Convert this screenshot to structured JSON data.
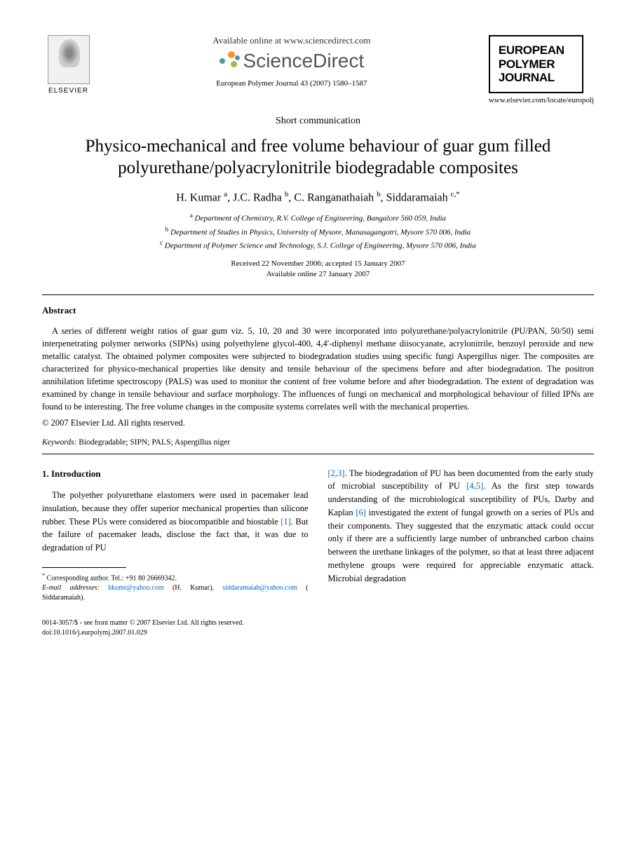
{
  "header": {
    "available_online": "Available online at www.sciencedirect.com",
    "sciencedirect": "ScienceDirect",
    "elsevier": "ELSEVIER",
    "journal_ref": "European Polymer Journal 43 (2007) 1580–1587",
    "journal_name_l1": "EUROPEAN",
    "journal_name_l2": "POLYMER",
    "journal_name_l3": "JOURNAL",
    "journal_url": "www.elsevier.com/locate/europolj"
  },
  "article": {
    "type": "Short communication",
    "title": "Physico-mechanical and free volume behaviour of guar gum filled polyurethane/polyacrylonitrile biodegradable composites",
    "authors_html": "H. Kumar <sup>a</sup>, J.C. Radha <sup>b</sup>, C. Ranganathaiah <sup>b</sup>, Siddaramaiah <sup>c,*</sup>",
    "aff_a": "Department of Chemistry, R.V. College of Engineering, Bangalore 560 059, India",
    "aff_b": "Department of Studies in Physics, University of Mysore, Manasagangotri, Mysore 570 006, India",
    "aff_c": "Department of Polymer Science and Technology, S.J. College of Engineering, Mysore 570 006, India",
    "dates_l1": "Received 22 November 2006; accepted 15 January 2007",
    "dates_l2": "Available online 27 January 2007"
  },
  "abstract": {
    "heading": "Abstract",
    "body": "A series of different weight ratios of guar gum viz. 5, 10, 20 and 30 were incorporated into polyurethane/polyacrylonitrile (PU/PAN, 50/50) semi interpenetrating polymer networks (SIPNs) using polyethylene glycol-400, 4,4′-diphenyl methane diisocyanate, acrylonitrile, benzoyl peroxide and new metallic catalyst. The obtained polymer composites were subjected to biodegradation studies using specific fungi Aspergillus niger. The composites are characterized for physico-mechanical properties like density and tensile behaviour of the specimens before and after biodegradation. The positron annihilation lifetime spectroscopy (PALS) was used to monitor the content of free volume before and after biodegradation. The extent of degradation was examined by change in tensile behaviour and surface morphology. The influences of fungi on mechanical and morphological behaviour of filled IPNs are found to be interesting. The free volume changes in the composite systems correlates well with the mechanical properties.",
    "copyright": "© 2007 Elsevier Ltd. All rights reserved.",
    "keywords_label": "Keywords:",
    "keywords": " Biodegradable; SIPN; PALS; Aspergillus niger"
  },
  "intro": {
    "heading": "1. Introduction",
    "col1_p1_a": "The polyether polyurethane elastomers were used in pacemaker lead insulation, because they offer superior mechanical properties than silicone rubber. These PUs were considered as biocompatible and biostable ",
    "ref1": "[1]",
    "col1_p1_b": ". But the failure of pacemaker leads, disclose the fact that, it was due to degradation of PU",
    "col2_ref23": "[2,3]",
    "col2_a": ". The biodegradation of PU has been documented from the early study of microbial susceptibility of PU ",
    "col2_ref45": "[4,5]",
    "col2_b": ". As the first step towards understanding of the microbiological susceptibility of PUs, Darby and Kaplan ",
    "col2_ref6": "[6]",
    "col2_c": " investigated the extent of fungal growth on a series of PUs and their components. They suggested that the enzymatic attack could occur only if there are a sufficiently large number of unbranched carbon chains between the urethane linkages of the polymer, so that at least three adjacent methylene groups were required for appreciable enzymatic attack. Microbial degradation"
  },
  "footnote": {
    "corr": "Corresponding author. Tel.: +91 80 26669342.",
    "email_label": "E-mail addresses:",
    "email1": "hkumr@yahoo.com",
    "email1_who": " (H. Kumar), ",
    "email2": "siddaramaiah@yahoo.com",
    "email2_who": " ( Siddaramaiah)."
  },
  "footer": {
    "issn": "0014-3057/$ - see front matter © 2007 Elsevier Ltd. All rights reserved.",
    "doi": "doi:10.1016/j.eurpolymj.2007.01.029"
  },
  "colors": {
    "link": "#0066cc",
    "sd_orange": "#f7941d",
    "sd_teal": "#4a9b9b",
    "sd_green": "#8bc34a",
    "sd_blue": "#5b8db8"
  }
}
